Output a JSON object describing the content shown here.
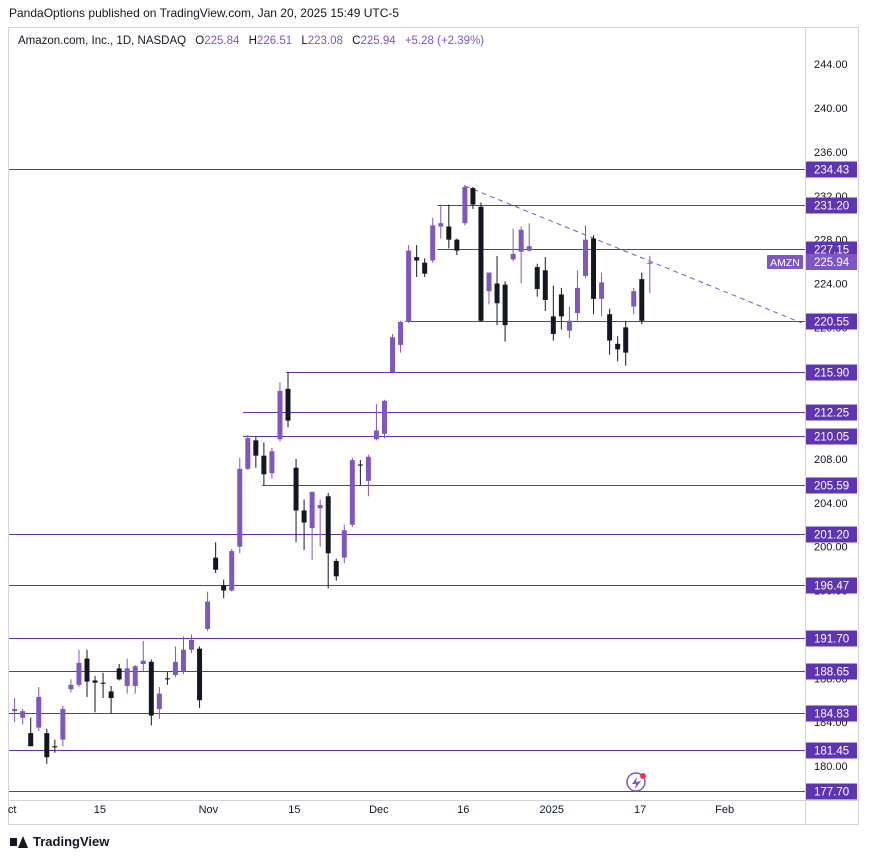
{
  "publisher_line": "PandaOptions published on TradingView.com, Jan 20, 2025 15:49 UTC-5",
  "legend": {
    "symbol": "Amazon.com, Inc., 1D, NASDAQ",
    "open_label": "O",
    "open": "225.84",
    "high_label": "H",
    "high": "226.51",
    "low_label": "L",
    "low": "223.08",
    "close_label": "C",
    "close": "225.94",
    "change": "+5.28 (+2.39%)"
  },
  "footer_brand": "TradingView",
  "colors": {
    "up": "#7e57c2",
    "down": "#131722",
    "level": "#5e35b1",
    "grid_text": "#131722",
    "trend": "#7e57c2"
  },
  "chart_data": {
    "type": "candlestick",
    "symbol_badge": "AMZN",
    "current_price": "225.94",
    "ylim": [
      176.9,
      247.3
    ],
    "y_ticks": [
      "180.00",
      "184.00",
      "188.00",
      "192.00",
      "196.00",
      "200.00",
      "204.00",
      "208.00",
      "212.00",
      "216.00",
      "220.00",
      "224.00",
      "228.00",
      "232.00",
      "236.00",
      "240.00",
      "244.00"
    ],
    "x_ticks": [
      {
        "label": "ct",
        "bar": -0.3
      },
      {
        "label": "15",
        "bar": 10.6
      },
      {
        "label": "Nov",
        "bar": 24.1
      },
      {
        "label": "15",
        "bar": 34.8
      },
      {
        "label": "Dec",
        "bar": 45.3
      },
      {
        "label": "16",
        "bar": 55.8
      },
      {
        "label": "2025",
        "bar": 66.8
      },
      {
        "label": "17",
        "bar": 77.8
      },
      {
        "label": "Feb",
        "bar": 88.3
      }
    ],
    "x_range": [
      -0.7,
      98.3
    ],
    "levels": [
      {
        "label": "234.43",
        "value": 234.43,
        "start_bar": -0.7
      },
      {
        "label": "231.20",
        "value": 231.2,
        "start_bar": 52.6
      },
      {
        "label": "227.15",
        "value": 227.15,
        "start_bar": 52.6
      },
      {
        "label": "220.55",
        "value": 220.55,
        "start_bar": 48.6
      },
      {
        "label": "215.90",
        "value": 215.9,
        "start_bar": 33.8
      },
      {
        "label": "212.25",
        "value": 212.25,
        "start_bar": 28.4
      },
      {
        "label": "210.05",
        "value": 210.05,
        "start_bar": 28.4
      },
      {
        "label": "205.59",
        "value": 205.59,
        "start_bar": 30.8
      },
      {
        "label": "201.20",
        "value": 201.2,
        "start_bar": -0.7
      },
      {
        "label": "196.47",
        "value": 196.47,
        "start_bar": -0.7
      },
      {
        "label": "191.70",
        "value": 191.7,
        "start_bar": -0.7
      },
      {
        "label": "188.65",
        "value": 188.65,
        "start_bar": -0.7
      },
      {
        "label": "184.83",
        "value": 184.83,
        "start_bar": -0.7
      },
      {
        "label": "181.45",
        "value": 181.45,
        "start_bar": -0.7
      },
      {
        "label": "177.70",
        "value": 177.7,
        "start_bar": -0.7
      }
    ],
    "trendline": {
      "from": {
        "bar": 56.0,
        "value": 232.9
      },
      "to": {
        "bar": 97.9,
        "value": 220.4
      }
    },
    "candles": [
      {
        "bar": 0,
        "o": 185.0,
        "h": 186.2,
        "l": 184.0,
        "c": 185.2
      },
      {
        "bar": 1,
        "o": 184.4,
        "h": 185.2,
        "l": 183.8,
        "c": 185.0
      },
      {
        "bar": 2,
        "o": 183.0,
        "h": 184.4,
        "l": 182.2,
        "c": 181.8
      },
      {
        "bar": 3,
        "o": 183.5,
        "h": 187.2,
        "l": 183.2,
        "c": 186.3
      },
      {
        "bar": 4,
        "o": 183.0,
        "h": 183.4,
        "l": 180.2,
        "c": 180.8
      },
      {
        "bar": 5,
        "o": 181.8,
        "h": 182.4,
        "l": 181.2,
        "c": 181.7
      },
      {
        "bar": 6,
        "o": 182.4,
        "h": 185.5,
        "l": 181.8,
        "c": 185.2
      },
      {
        "bar": 7,
        "o": 187.0,
        "h": 187.9,
        "l": 186.7,
        "c": 187.4
      },
      {
        "bar": 8,
        "o": 187.4,
        "h": 190.6,
        "l": 187.2,
        "c": 189.4
      },
      {
        "bar": 9,
        "o": 189.8,
        "h": 190.6,
        "l": 186.3,
        "c": 187.7
      },
      {
        "bar": 10,
        "o": 187.8,
        "h": 188.2,
        "l": 184.9,
        "c": 187.6
      },
      {
        "bar": 11,
        "o": 187.6,
        "h": 188.5,
        "l": 186.2,
        "c": 187.5
      },
      {
        "bar": 12,
        "o": 186.8,
        "h": 187.3,
        "l": 184.8,
        "c": 186.2
      },
      {
        "bar": 13,
        "o": 188.9,
        "h": 189.3,
        "l": 187.8,
        "c": 187.9
      },
      {
        "bar": 14,
        "o": 187.3,
        "h": 189.8,
        "l": 186.6,
        "c": 188.9
      },
      {
        "bar": 15,
        "o": 187.3,
        "h": 189.2,
        "l": 186.6,
        "c": 189.1
      },
      {
        "bar": 16,
        "o": 189.3,
        "h": 191.4,
        "l": 188.6,
        "c": 189.6
      },
      {
        "bar": 17,
        "o": 189.5,
        "h": 189.7,
        "l": 183.7,
        "c": 184.6
      },
      {
        "bar": 18,
        "o": 185.2,
        "h": 187.2,
        "l": 184.3,
        "c": 186.6
      },
      {
        "bar": 19,
        "o": 188.0,
        "h": 188.6,
        "l": 187.4,
        "c": 187.9
      },
      {
        "bar": 20,
        "o": 188.3,
        "h": 190.9,
        "l": 188.1,
        "c": 189.5
      },
      {
        "bar": 21,
        "o": 188.6,
        "h": 191.8,
        "l": 188.4,
        "c": 190.6
      },
      {
        "bar": 22,
        "o": 190.6,
        "h": 192.0,
        "l": 190.3,
        "c": 191.5
      },
      {
        "bar": 23,
        "o": 190.7,
        "h": 190.9,
        "l": 185.3,
        "c": 186.0
      },
      {
        "bar": 24,
        "o": 192.5,
        "h": 195.9,
        "l": 192.3,
        "c": 195.0
      },
      {
        "bar": 25,
        "o": 199.0,
        "h": 200.4,
        "l": 197.6,
        "c": 197.9
      },
      {
        "bar": 26,
        "o": 196.5,
        "h": 197.0,
        "l": 195.3,
        "c": 196.0
      },
      {
        "bar": 27,
        "o": 196.0,
        "h": 199.8,
        "l": 195.9,
        "c": 199.6
      },
      {
        "bar": 28,
        "o": 200.0,
        "h": 208.1,
        "l": 199.4,
        "c": 207.1
      },
      {
        "bar": 29,
        "o": 207.1,
        "h": 210.2,
        "l": 207.0,
        "c": 209.9
      },
      {
        "bar": 30,
        "o": 209.7,
        "h": 210.0,
        "l": 207.2,
        "c": 208.3
      },
      {
        "bar": 31,
        "o": 208.3,
        "h": 209.5,
        "l": 205.6,
        "c": 206.6
      },
      {
        "bar": 32,
        "o": 206.7,
        "h": 209.0,
        "l": 206.2,
        "c": 208.7
      },
      {
        "bar": 33,
        "o": 209.8,
        "h": 215.0,
        "l": 209.6,
        "c": 214.2
      },
      {
        "bar": 34,
        "o": 214.4,
        "h": 215.9,
        "l": 210.9,
        "c": 211.5
      },
      {
        "bar": 35,
        "o": 207.2,
        "h": 208.0,
        "l": 200.4,
        "c": 203.3
      },
      {
        "bar": 36,
        "o": 203.3,
        "h": 204.3,
        "l": 199.7,
        "c": 202.2
      },
      {
        "bar": 37,
        "o": 201.7,
        "h": 205.0,
        "l": 198.8,
        "c": 205.0
      },
      {
        "bar": 38,
        "o": 203.5,
        "h": 204.3,
        "l": 200.0,
        "c": 203.8
      },
      {
        "bar": 39,
        "o": 204.6,
        "h": 204.9,
        "l": 196.2,
        "c": 199.4
      },
      {
        "bar": 40,
        "o": 198.7,
        "h": 198.9,
        "l": 196.9,
        "c": 197.3
      },
      {
        "bar": 41,
        "o": 199.0,
        "h": 202.0,
        "l": 198.5,
        "c": 201.5
      },
      {
        "bar": 42,
        "o": 202.0,
        "h": 208.1,
        "l": 201.8,
        "c": 207.9
      },
      {
        "bar": 43,
        "o": 207.5,
        "h": 207.9,
        "l": 205.6,
        "c": 207.4
      },
      {
        "bar": 44,
        "o": 206.0,
        "h": 208.4,
        "l": 204.6,
        "c": 208.2
      },
      {
        "bar": 45,
        "o": 209.8,
        "h": 213.0,
        "l": 209.7,
        "c": 210.6
      },
      {
        "bar": 46,
        "o": 210.3,
        "h": 213.4,
        "l": 209.9,
        "c": 213.3
      },
      {
        "bar": 47,
        "o": 215.9,
        "h": 219.4,
        "l": 215.8,
        "c": 219.1
      },
      {
        "bar": 48,
        "o": 218.4,
        "h": 220.6,
        "l": 217.7,
        "c": 220.5
      },
      {
        "bar": 49,
        "o": 220.5,
        "h": 227.5,
        "l": 220.4,
        "c": 227.0
      },
      {
        "bar": 50,
        "o": 226.4,
        "h": 227.5,
        "l": 224.6,
        "c": 226.1
      },
      {
        "bar": 51,
        "o": 225.9,
        "h": 226.3,
        "l": 224.6,
        "c": 224.9
      },
      {
        "bar": 52,
        "o": 226.1,
        "h": 230.0,
        "l": 225.9,
        "c": 229.3
      },
      {
        "bar": 53,
        "o": 229.2,
        "h": 231.2,
        "l": 228.1,
        "c": 229.5
      },
      {
        "bar": 54,
        "o": 229.2,
        "h": 231.2,
        "l": 227.2,
        "c": 228.0
      },
      {
        "bar": 55,
        "o": 228.0,
        "h": 228.1,
        "l": 226.6,
        "c": 227.0
      },
      {
        "bar": 56,
        "o": 229.5,
        "h": 233.0,
        "l": 229.3,
        "c": 232.8
      },
      {
        "bar": 57,
        "o": 232.7,
        "h": 232.8,
        "l": 230.8,
        "c": 231.2
      },
      {
        "bar": 58,
        "o": 231.0,
        "h": 231.4,
        "l": 220.5,
        "c": 220.6
      },
      {
        "bar": 59,
        "o": 223.3,
        "h": 225.0,
        "l": 222.1,
        "c": 225.0
      },
      {
        "bar": 60,
        "o": 224.0,
        "h": 226.5,
        "l": 220.2,
        "c": 222.2
      },
      {
        "bar": 61,
        "o": 223.9,
        "h": 224.2,
        "l": 218.7,
        "c": 220.2
      },
      {
        "bar": 62,
        "o": 226.2,
        "h": 229.0,
        "l": 226.0,
        "c": 226.7
      },
      {
        "bar": 63,
        "o": 226.9,
        "h": 229.2,
        "l": 224.0,
        "c": 228.9
      },
      {
        "bar": 64,
        "o": 227.0,
        "h": 229.5,
        "l": 226.9,
        "c": 227.4
      },
      {
        "bar": 65,
        "o": 225.5,
        "h": 225.8,
        "l": 222.8,
        "c": 223.5
      },
      {
        "bar": 66,
        "o": 225.2,
        "h": 226.4,
        "l": 221.5,
        "c": 222.5
      },
      {
        "bar": 67,
        "o": 221.0,
        "h": 223.8,
        "l": 218.8,
        "c": 219.4
      },
      {
        "bar": 68,
        "o": 223.0,
        "h": 223.6,
        "l": 219.8,
        "c": 221.0
      },
      {
        "bar": 69,
        "o": 219.7,
        "h": 221.9,
        "l": 219.0,
        "c": 220.6
      },
      {
        "bar": 70,
        "o": 221.3,
        "h": 225.2,
        "l": 220.6,
        "c": 223.6
      },
      {
        "bar": 71,
        "o": 224.7,
        "h": 229.3,
        "l": 224.5,
        "c": 228.0
      },
      {
        "bar": 72,
        "o": 228.1,
        "h": 228.4,
        "l": 221.2,
        "c": 222.6
      },
      {
        "bar": 73,
        "o": 222.6,
        "h": 225.0,
        "l": 221.0,
        "c": 224.1
      },
      {
        "bar": 74,
        "o": 221.2,
        "h": 221.7,
        "l": 217.5,
        "c": 218.8
      },
      {
        "bar": 75,
        "o": 218.5,
        "h": 219.2,
        "l": 216.9,
        "c": 218.0
      },
      {
        "bar": 76,
        "o": 220.0,
        "h": 220.6,
        "l": 216.5,
        "c": 217.7
      },
      {
        "bar": 77,
        "o": 221.9,
        "h": 223.6,
        "l": 221.2,
        "c": 223.3
      },
      {
        "bar": 78,
        "o": 224.4,
        "h": 225.0,
        "l": 220.3,
        "c": 220.6
      },
      {
        "bar": 79,
        "o": 225.8,
        "h": 226.5,
        "l": 223.1,
        "c": 225.9
      }
    ]
  }
}
